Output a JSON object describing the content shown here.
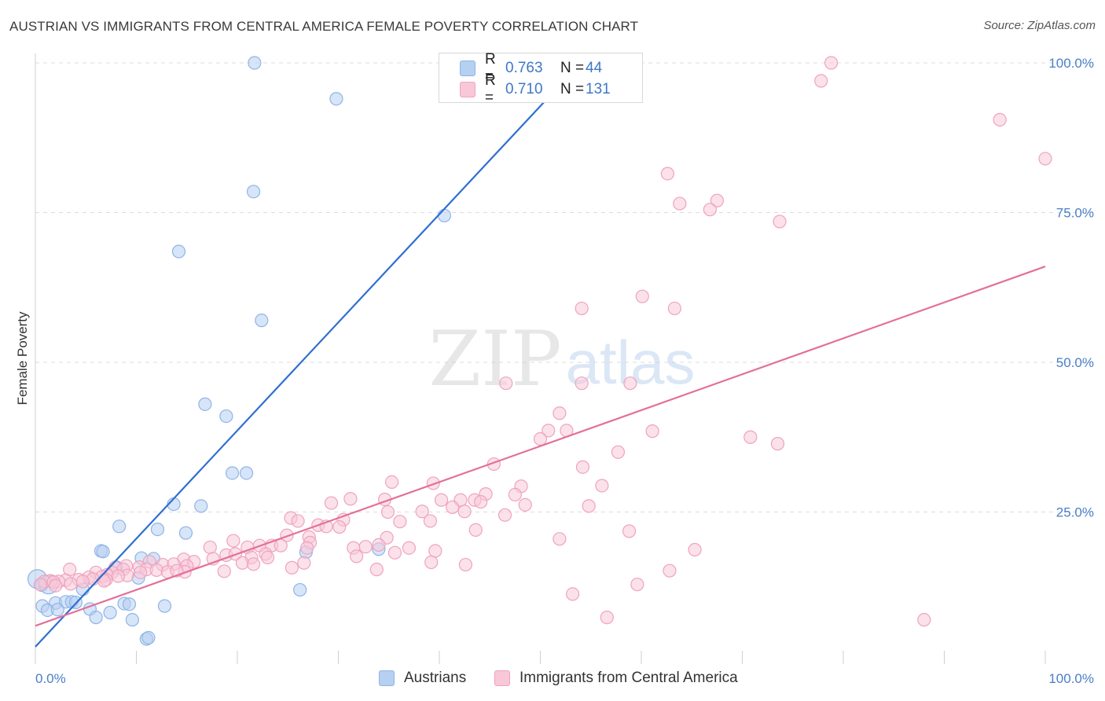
{
  "header": {
    "title": "AUSTRIAN VS IMMIGRANTS FROM CENTRAL AMERICA FEMALE POVERTY CORRELATION CHART",
    "source": "Source: ZipAtlas.com"
  },
  "watermark": {
    "zip": "ZIP",
    "atlas": "atlas"
  },
  "colors": {
    "blue": "#2f6fd0",
    "blue_fill": "#b6d0f2",
    "blue_stroke": "#8fb4e6",
    "pink": "#e3709a",
    "pink_fill": "#f8c8d8",
    "pink_stroke": "#efa3bd",
    "grid": "#dcdcdc",
    "tick_text": "#4a7fc7"
  },
  "legend": {
    "rows": [
      {
        "r_label": "R =",
        "r_value": "0.763",
        "n_label": "N =",
        "n_value": "44"
      },
      {
        "r_label": "R =",
        "r_value": "0.710",
        "n_label": "N =",
        "n_value": "131"
      }
    ]
  },
  "bottom_legend": {
    "series1": "Austrians",
    "series2": "Immigrants from Central America"
  },
  "chart_data": {
    "type": "scatter",
    "xlabel": "",
    "ylabel": "Female Poverty",
    "xlim": [
      0,
      100
    ],
    "ylim": [
      0,
      100
    ],
    "x_tick_labels": [
      "0.0%",
      "100.0%"
    ],
    "y_ticks": [
      {
        "value": 25,
        "label": "25.0%"
      },
      {
        "value": 50,
        "label": "50.0%"
      },
      {
        "value": 75,
        "label": "75.0%"
      },
      {
        "value": 100,
        "label": "100.0%"
      }
    ],
    "grid": "horizontal dashed",
    "series": [
      {
        "name": "Austrians",
        "color": "#b6d0f2",
        "trend": {
          "x": [
            0,
            54
          ],
          "y": [
            2.5,
            100
          ]
        },
        "points": [
          [
            21.7,
            100
          ],
          [
            29.8,
            94
          ],
          [
            21.6,
            78.5
          ],
          [
            40.5,
            74.5
          ],
          [
            14.2,
            68.5
          ],
          [
            22.4,
            57
          ],
          [
            16.8,
            43
          ],
          [
            18.9,
            41
          ],
          [
            19.5,
            31.5
          ],
          [
            20.9,
            31.5
          ],
          [
            13.7,
            26.3
          ],
          [
            16.4,
            26
          ],
          [
            8.3,
            22.6
          ],
          [
            12.1,
            22.1
          ],
          [
            14.9,
            21.5
          ],
          [
            6.5,
            18.5
          ],
          [
            6.7,
            18.4
          ],
          [
            10.5,
            17.3
          ],
          [
            11.7,
            17.2
          ],
          [
            26.8,
            18.3
          ],
          [
            34.0,
            18.8
          ],
          [
            8.0,
            15.8
          ],
          [
            10.2,
            14.0
          ],
          [
            26.2,
            12.0
          ],
          [
            0.2,
            13.8
          ],
          [
            0.6,
            12.8
          ],
          [
            4.7,
            12.1
          ],
          [
            2.0,
            9.8
          ],
          [
            3.0,
            10.0
          ],
          [
            3.6,
            10.0
          ],
          [
            4.0,
            9.9
          ],
          [
            0.7,
            9.3
          ],
          [
            1.2,
            8.6
          ],
          [
            2.2,
            8.7
          ],
          [
            5.4,
            8.8
          ],
          [
            8.8,
            9.7
          ],
          [
            9.3,
            9.6
          ],
          [
            12.8,
            9.3
          ],
          [
            6.0,
            7.4
          ],
          [
            7.4,
            8.2
          ],
          [
            9.6,
            7.0
          ],
          [
            11.0,
            3.8
          ],
          [
            11.2,
            4.0
          ],
          [
            1.3,
            12.9
          ]
        ]
      },
      {
        "name": "Immigrants from Central America",
        "color": "#f8c8d8",
        "trend": {
          "x": [
            0,
            100
          ],
          "y": [
            6,
            66
          ]
        },
        "points": [
          [
            78.8,
            100
          ],
          [
            77.8,
            97
          ],
          [
            95.5,
            90.5
          ],
          [
            100,
            84
          ],
          [
            62.6,
            81.5
          ],
          [
            63.8,
            76.5
          ],
          [
            67.5,
            77
          ],
          [
            66.8,
            75.5
          ],
          [
            73.7,
            73.5
          ],
          [
            60.1,
            61
          ],
          [
            54.1,
            59
          ],
          [
            63.3,
            59
          ],
          [
            46.6,
            46.5
          ],
          [
            54.1,
            46.5
          ],
          [
            58.9,
            46.5
          ],
          [
            51.9,
            41.5
          ],
          [
            50.8,
            38.6
          ],
          [
            52.6,
            38.6
          ],
          [
            61.1,
            38.5
          ],
          [
            50.0,
            37.2
          ],
          [
            70.8,
            37.5
          ],
          [
            73.5,
            36.4
          ],
          [
            57.7,
            35.0
          ],
          [
            45.4,
            33.0
          ],
          [
            54.2,
            32.5
          ],
          [
            35.3,
            30.0
          ],
          [
            39.4,
            29.8
          ],
          [
            56.1,
            29.4
          ],
          [
            48.1,
            29.3
          ],
          [
            44.6,
            28.0
          ],
          [
            47.5,
            27.9
          ],
          [
            31.2,
            27.2
          ],
          [
            34.6,
            27.1
          ],
          [
            40.2,
            27.0
          ],
          [
            42.1,
            27.0
          ],
          [
            43.5,
            27.0
          ],
          [
            44.1,
            26.7
          ],
          [
            29.3,
            26.5
          ],
          [
            48.5,
            26.2
          ],
          [
            54.8,
            26.0
          ],
          [
            41.3,
            25.8
          ],
          [
            34.9,
            25.0
          ],
          [
            42.5,
            25.1
          ],
          [
            38.3,
            25.1
          ],
          [
            46.5,
            24.5
          ],
          [
            25.3,
            24.0
          ],
          [
            26.0,
            23.5
          ],
          [
            30.5,
            23.7
          ],
          [
            36.1,
            23.4
          ],
          [
            28.0,
            22.8
          ],
          [
            28.8,
            22.6
          ],
          [
            30.1,
            22.5
          ],
          [
            39.1,
            23.5
          ],
          [
            43.6,
            22.0
          ],
          [
            24.9,
            21.1
          ],
          [
            27.1,
            20.8
          ],
          [
            34.8,
            20.7
          ],
          [
            51.9,
            20.5
          ],
          [
            58.8,
            21.8
          ],
          [
            19.6,
            20.2
          ],
          [
            22.2,
            19.4
          ],
          [
            23.4,
            19.4
          ],
          [
            24.3,
            19.4
          ],
          [
            21.0,
            19.1
          ],
          [
            32.7,
            19.2
          ],
          [
            34.0,
            19.5
          ],
          [
            37.0,
            19.0
          ],
          [
            17.3,
            19.1
          ],
          [
            27.2,
            19.9
          ],
          [
            31.5,
            19.0
          ],
          [
            65.3,
            18.7
          ],
          [
            22.8,
            18.0
          ],
          [
            35.6,
            18.2
          ],
          [
            39.6,
            18.5
          ],
          [
            18.9,
            17.8
          ],
          [
            19.8,
            18.0
          ],
          [
            21.4,
            17.4
          ],
          [
            23.0,
            17.4
          ],
          [
            26.9,
            19.0
          ],
          [
            31.8,
            17.6
          ],
          [
            17.6,
            17.2
          ],
          [
            14.7,
            17.1
          ],
          [
            15.7,
            16.7
          ],
          [
            20.5,
            16.5
          ],
          [
            26.6,
            16.5
          ],
          [
            11.3,
            16.7
          ],
          [
            12.6,
            16.2
          ],
          [
            13.7,
            16.3
          ],
          [
            15.0,
            16.0
          ],
          [
            21.6,
            16.3
          ],
          [
            9.0,
            16.0
          ],
          [
            10.3,
            15.8
          ],
          [
            11.0,
            15.4
          ],
          [
            12.0,
            15.3
          ],
          [
            7.9,
            15.7
          ],
          [
            8.7,
            15.4
          ],
          [
            13.1,
            15.0
          ],
          [
            18.7,
            15.1
          ],
          [
            14.8,
            15.0
          ],
          [
            7.6,
            14.9
          ],
          [
            3.4,
            15.4
          ],
          [
            6.0,
            14.9
          ],
          [
            7.1,
            14.5
          ],
          [
            9.1,
            14.4
          ],
          [
            6.6,
            14.2
          ],
          [
            5.3,
            14.1
          ],
          [
            5.7,
            13.8
          ],
          [
            4.3,
            13.7
          ],
          [
            7.0,
            13.7
          ],
          [
            3.0,
            13.6
          ],
          [
            2.3,
            13.4
          ],
          [
            1.5,
            13.5
          ],
          [
            0.9,
            13.4
          ],
          [
            4.7,
            13.4
          ],
          [
            1.8,
            13.3
          ],
          [
            0.5,
            12.9
          ],
          [
            2.0,
            12.7
          ],
          [
            3.5,
            13.0
          ],
          [
            39.2,
            16.6
          ],
          [
            42.6,
            16.2
          ],
          [
            62.8,
            15.2
          ],
          [
            59.6,
            12.9
          ],
          [
            53.2,
            11.3
          ],
          [
            56.6,
            7.4
          ],
          [
            88.0,
            7.0
          ],
          [
            6.8,
            13.5
          ],
          [
            8.2,
            14.3
          ],
          [
            10.4,
            14.9
          ],
          [
            25.4,
            15.7
          ],
          [
            33.8,
            15.4
          ],
          [
            14.0,
            15.2
          ]
        ]
      }
    ]
  }
}
